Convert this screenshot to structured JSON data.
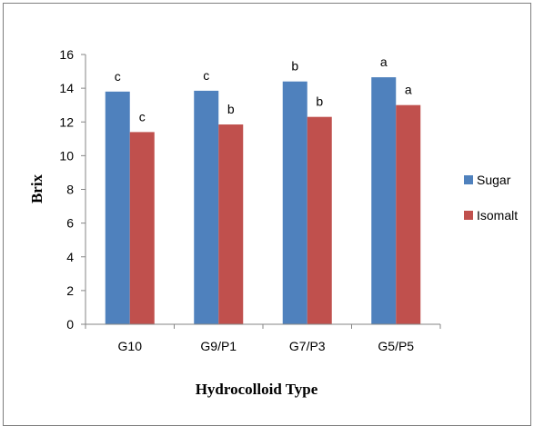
{
  "chart_data": {
    "type": "bar",
    "title": "",
    "xlabel": "Hydrocolloid Type",
    "ylabel": "Brix",
    "categories": [
      "G10",
      "G9/P1",
      "G7/P3",
      "G5/P5"
    ],
    "series": [
      {
        "name": "Sugar",
        "color": "#4F81BD",
        "values": [
          13.8,
          13.85,
          14.4,
          14.65
        ],
        "labels": [
          "c",
          "c",
          "b",
          "a"
        ]
      },
      {
        "name": "Isomalt",
        "color": "#C0504D",
        "values": [
          11.4,
          11.85,
          12.3,
          13.0
        ],
        "labels": [
          "c",
          "b",
          "b",
          "a"
        ]
      }
    ],
    "ylim": [
      0,
      16
    ],
    "yticks": [
      "0",
      "2",
      "4",
      "6",
      "8",
      "10",
      "12",
      "14",
      "16"
    ],
    "grid": false,
    "legend_position": "right"
  }
}
